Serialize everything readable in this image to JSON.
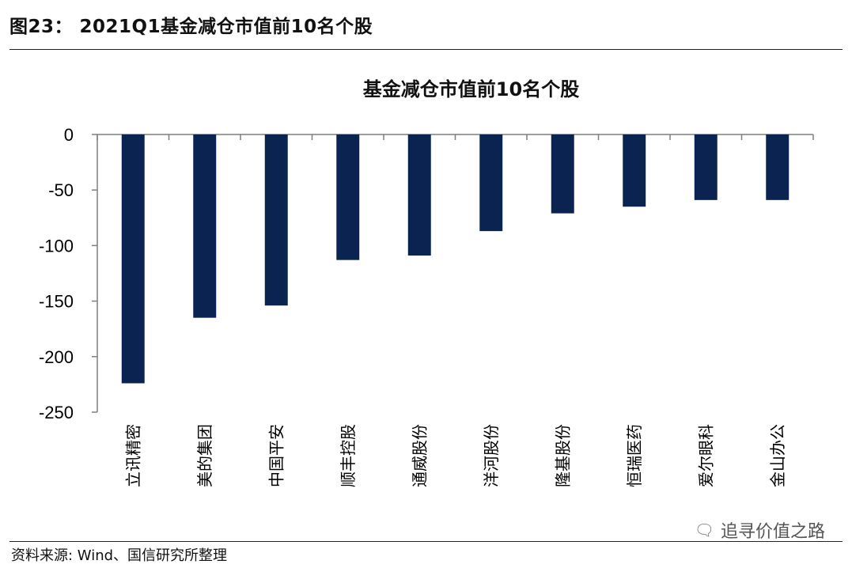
{
  "figure": {
    "header": "图23：  2021Q1基金减仓市值前10名个股",
    "source": "资料来源: Wind、国信研究所整理",
    "watermark": "追寻价值之路",
    "watermark_icon": "wechat-icon"
  },
  "colors": {
    "bar": "#0a2351",
    "axis": "#7f7f7f"
  },
  "chart_data": {
    "type": "bar",
    "title": "基金减仓市值前10名个股",
    "xlabel": "",
    "ylabel": "",
    "categories": [
      "立讯精密",
      "美的集团",
      "中国平安",
      "顺丰控股",
      "通威股份",
      "洋河股份",
      "隆基股份",
      "恒瑞医药",
      "爱尔眼科",
      "金山办公"
    ],
    "values": [
      -224,
      -165,
      -154,
      -113,
      -109,
      -87,
      -71,
      -65,
      -59,
      -59
    ],
    "ylim": [
      -250,
      0
    ],
    "yticks": [
      0,
      -50,
      -100,
      -150,
      -200,
      -250
    ],
    "grid": false,
    "legend": "none"
  }
}
